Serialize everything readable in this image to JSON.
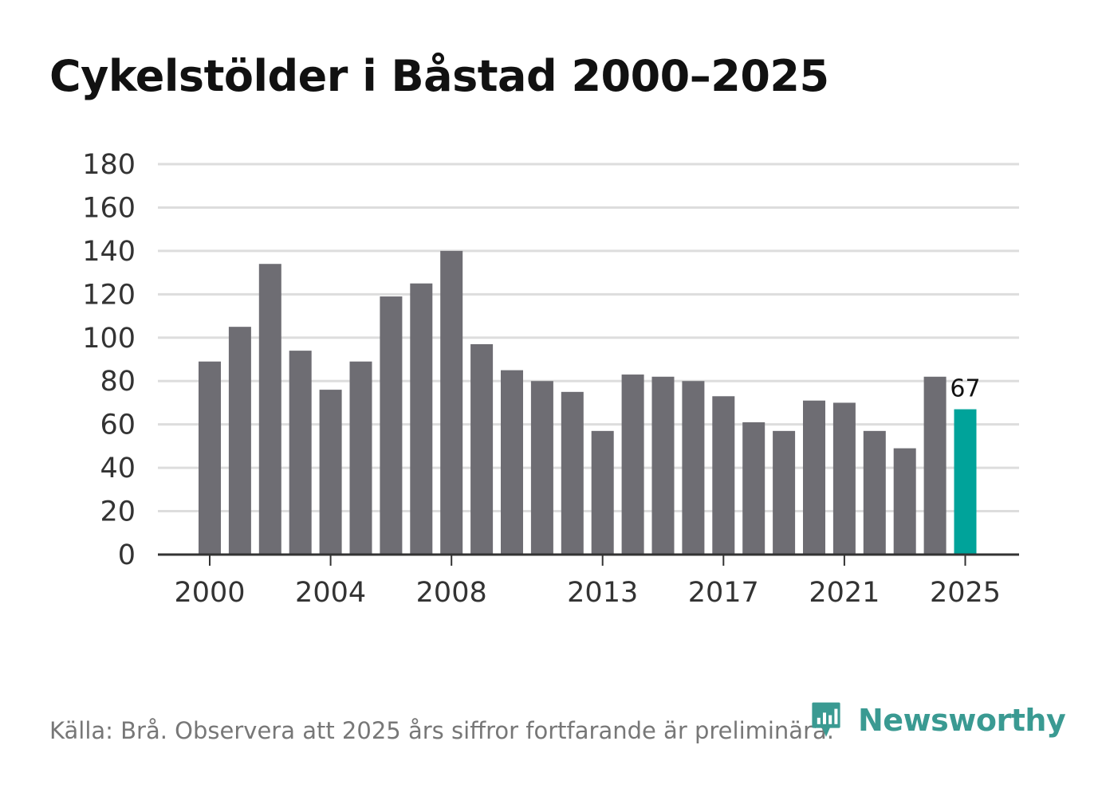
{
  "title": "Cykelstölder i Båstad 2000–2025",
  "source": "Källa: Brå. Observera att 2025 års siffror fortfarande är preliminära.",
  "brand": {
    "name": "Newsworthy",
    "color": "#3a9a92"
  },
  "colors": {
    "bar": "#6e6d73",
    "highlight": "#00a39a",
    "grid": "#dddddd",
    "axis": "#333333"
  },
  "chart_data": {
    "type": "bar",
    "title": "Cykelstölder i Båstad 2000–2025",
    "xlabel": "",
    "ylabel": "",
    "categories": [
      "2000",
      "2001",
      "2002",
      "2003",
      "2004",
      "2005",
      "2006",
      "2007",
      "2008",
      "2009",
      "2010",
      "2011",
      "2012",
      "2013",
      "2014",
      "2015",
      "2016",
      "2017",
      "2018",
      "2019",
      "2020",
      "2021",
      "2022",
      "2023",
      "2024",
      "2025"
    ],
    "values": [
      89,
      105,
      134,
      94,
      76,
      89,
      119,
      125,
      140,
      97,
      85,
      80,
      75,
      57,
      83,
      82,
      80,
      73,
      61,
      57,
      71,
      70,
      57,
      49,
      82,
      67
    ],
    "highlight_index": 25,
    "data_labels": [
      {
        "index": 25,
        "text": "67"
      }
    ],
    "x_ticks": [
      "2000",
      "2004",
      "2008",
      "2013",
      "2017",
      "2021",
      "2025"
    ],
    "y_ticks": [
      0,
      20,
      40,
      60,
      80,
      100,
      120,
      140,
      160,
      180
    ],
    "ylim": [
      0,
      180
    ],
    "grid": true,
    "legend": "none"
  }
}
